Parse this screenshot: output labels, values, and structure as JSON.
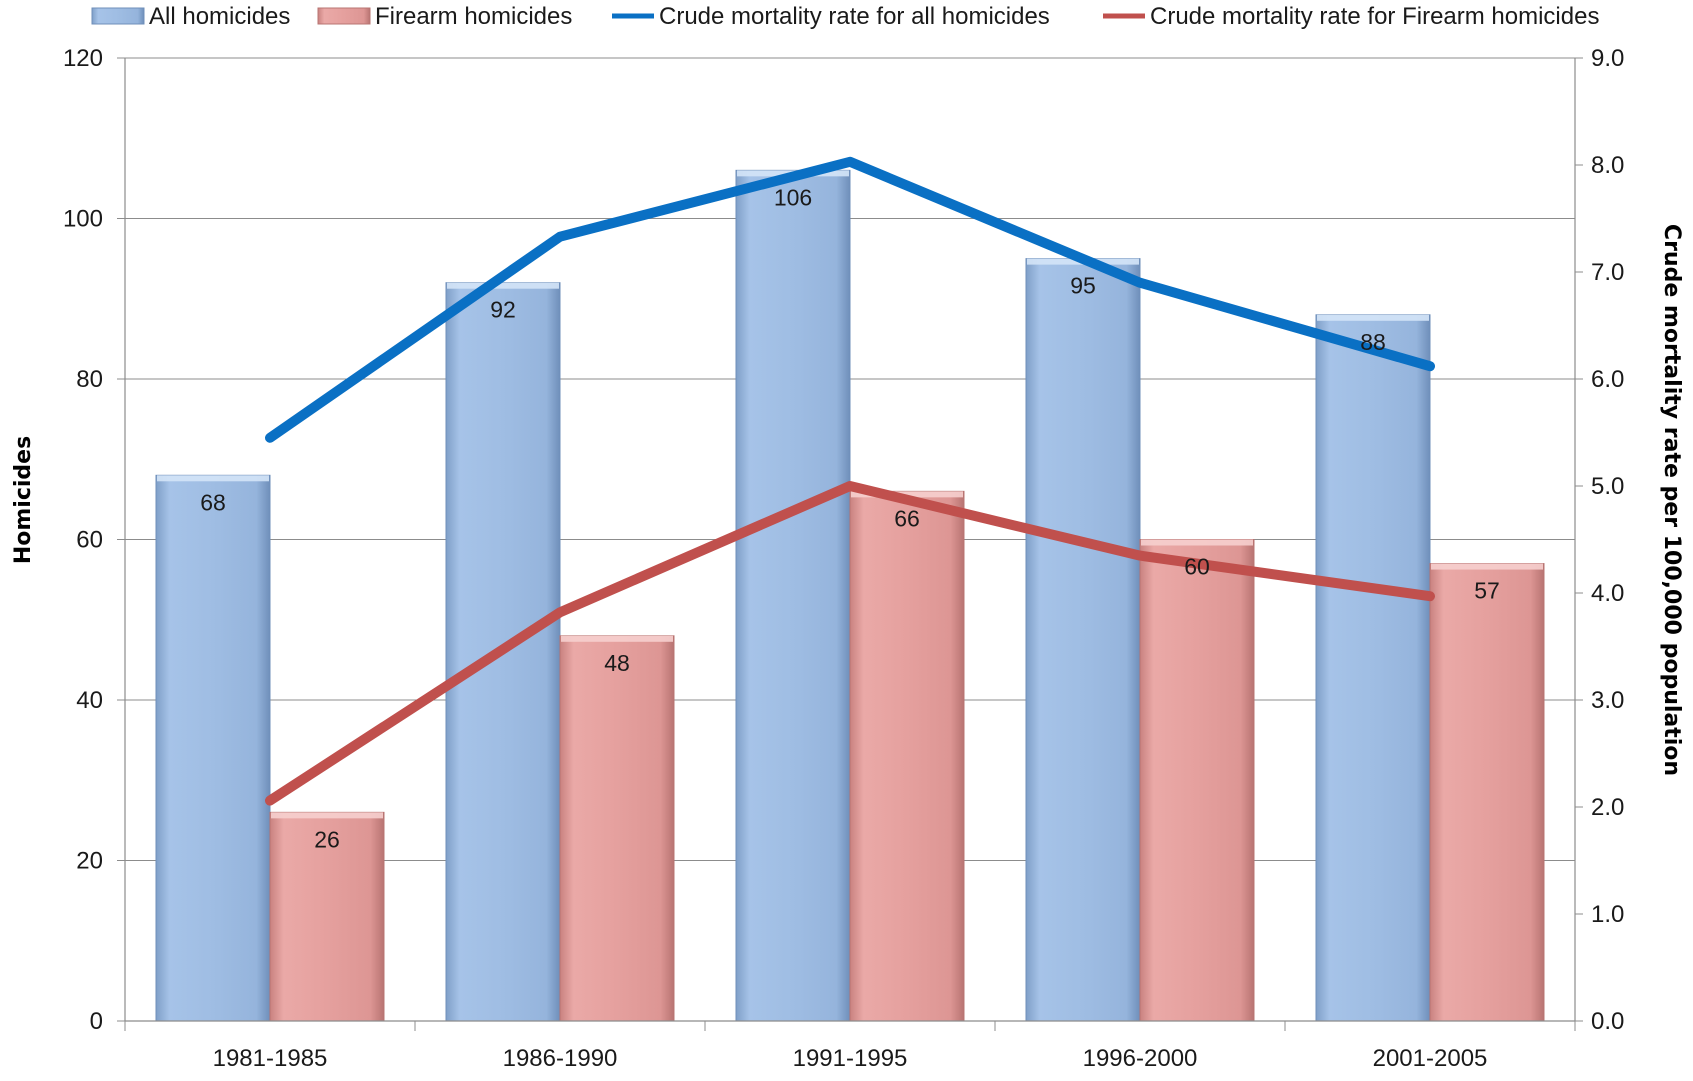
{
  "chart_data": {
    "type": "bar",
    "categories": [
      "1981-1985",
      "1986-1990",
      "1991-1995",
      "1996-2000",
      "2001-2005"
    ],
    "series": [
      {
        "name": "All homicides",
        "kind": "bar",
        "axis": "left",
        "values": [
          68,
          92,
          106,
          95,
          88
        ],
        "color": "#9dbde4"
      },
      {
        "name": "Firearm homicides",
        "kind": "bar",
        "axis": "left",
        "values": [
          26,
          48,
          66,
          60,
          57
        ],
        "color": "#e6a09e"
      },
      {
        "name": "Crude mortality rate for all homicides",
        "kind": "line",
        "axis": "right",
        "values": [
          5.45,
          7.33,
          8.03,
          6.9,
          6.12
        ],
        "color": "#0a70c4"
      },
      {
        "name": "Crude mortality rate for Firearm homicides",
        "kind": "line",
        "axis": "right",
        "values": [
          2.06,
          3.82,
          5.0,
          4.35,
          3.97
        ],
        "color": "#c0504d"
      }
    ],
    "ylabel": "Homicides",
    "ylim": [
      0,
      120
    ],
    "y_ticks": [
      "0",
      "20",
      "40",
      "60",
      "80",
      "100",
      "120"
    ],
    "y2label": "Crude mortality rate per 100,000 population",
    "y2lim": [
      0,
      9
    ],
    "y2_ticks": [
      "0.0",
      "1.0",
      "2.0",
      "3.0",
      "4.0",
      "5.0",
      "6.0",
      "7.0",
      "8.0",
      "9.0"
    ],
    "grid": true,
    "legend_position": "top"
  }
}
